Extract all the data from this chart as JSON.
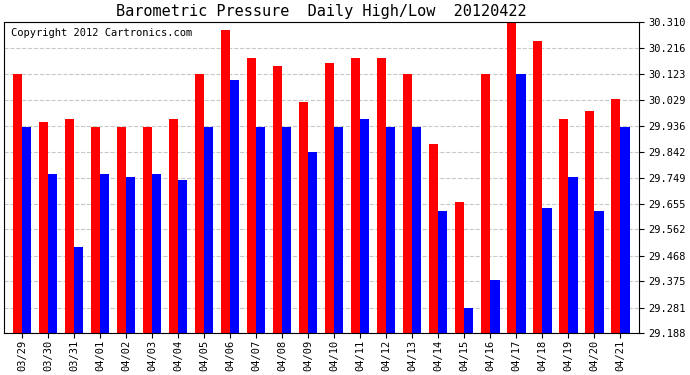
{
  "title": "Barometric Pressure  Daily High/Low  20120422",
  "copyright": "Copyright 2012 Cartronics.com",
  "dates": [
    "03/29",
    "03/30",
    "03/31",
    "04/01",
    "04/02",
    "04/03",
    "04/04",
    "04/05",
    "04/06",
    "04/07",
    "04/08",
    "04/09",
    "04/10",
    "04/11",
    "04/12",
    "04/13",
    "04/14",
    "04/15",
    "04/16",
    "04/17",
    "04/18",
    "04/19",
    "04/20",
    "04/21"
  ],
  "highs": [
    30.12,
    29.95,
    29.96,
    29.93,
    29.93,
    29.93,
    29.96,
    30.12,
    30.28,
    30.18,
    30.15,
    30.02,
    30.16,
    30.18,
    30.18,
    30.12,
    29.87,
    29.66,
    30.12,
    30.35,
    30.24,
    29.96,
    29.99,
    30.03
  ],
  "lows": [
    29.93,
    29.76,
    29.5,
    29.76,
    29.75,
    29.76,
    29.74,
    29.93,
    30.1,
    29.93,
    29.93,
    29.84,
    29.93,
    29.96,
    29.93,
    29.93,
    29.63,
    29.28,
    29.38,
    30.12,
    29.64,
    29.75,
    29.63,
    29.93
  ],
  "high_color": "#ff0000",
  "low_color": "#0000ff",
  "background_color": "#ffffff",
  "grid_color": "#c8c8c8",
  "ylim_min": 29.188,
  "ylim_max": 30.31,
  "yticks": [
    29.188,
    29.281,
    29.375,
    29.468,
    29.562,
    29.655,
    29.749,
    29.842,
    29.936,
    30.029,
    30.123,
    30.216,
    30.31
  ],
  "title_fontsize": 11,
  "tick_fontsize": 7.5,
  "copyright_fontsize": 7.5,
  "bar_width": 0.35,
  "figwidth": 6.9,
  "figheight": 3.75
}
